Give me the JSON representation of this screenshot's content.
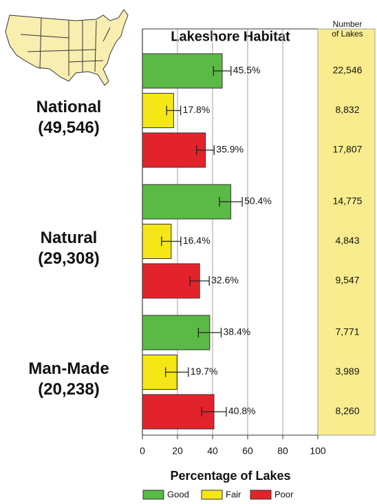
{
  "chart_data": {
    "type": "bar",
    "orientation": "horizontal",
    "title": "Lakeshore Habitat",
    "column_header": [
      "Number",
      "of Lakes"
    ],
    "x_label": "Percentage of Lakes",
    "groups": [
      {
        "name": "National",
        "total": "(49,546)"
      },
      {
        "name": "Natural",
        "total": "(29,308)"
      },
      {
        "name": "Man-Made",
        "total": "(20,238)"
      }
    ],
    "series": [
      {
        "name": "Good",
        "color": "#5bb946",
        "values": [
          45.5,
          50.4,
          38.4
        ],
        "value_labels": [
          "45.5%",
          "50.4%",
          "38.4%"
        ],
        "errors": [
          5,
          6.5,
          6.5
        ],
        "lakes": [
          "22,546",
          "14,775",
          "7,771"
        ]
      },
      {
        "name": "Fair",
        "color": "#f4e617",
        "values": [
          17.8,
          16.4,
          19.7
        ],
        "value_labels": [
          "17.8%",
          "16.4%",
          "19.7%"
        ],
        "errors": [
          4,
          5.5,
          6.5
        ],
        "lakes": [
          "8,832",
          "4,843",
          "3,989"
        ]
      },
      {
        "name": "Poor",
        "color": "#e3232b",
        "values": [
          35.9,
          32.6,
          40.8
        ],
        "value_labels": [
          "35.9%",
          "32.6%",
          "40.8%"
        ],
        "errors": [
          5,
          5.5,
          7
        ],
        "lakes": [
          "17,807",
          "9,547",
          "8,260"
        ]
      }
    ],
    "xlim": [
      0,
      100
    ],
    "xticks": [
      0,
      20,
      40,
      60,
      80,
      100
    ],
    "grid": true,
    "legend": "bottom"
  }
}
